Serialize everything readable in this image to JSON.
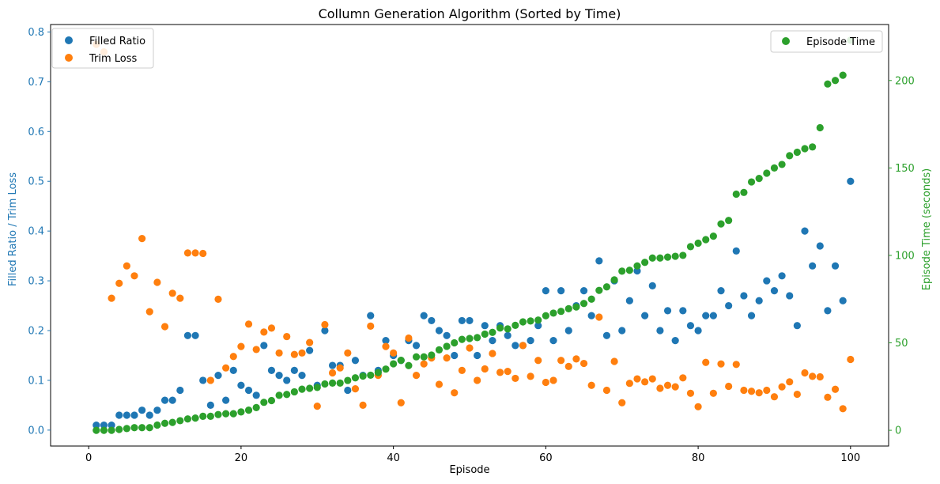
{
  "chart_data": {
    "type": "scatter",
    "title": "Collumn Generation Algorithm (Sorted by Time)",
    "xlabel": "Episode",
    "ylabel_left": "Filled Ratio / Trim Loss",
    "ylabel_right": "Episode Time (seconds)",
    "xlim": [
      -5,
      105
    ],
    "ylim_left": [
      -0.032,
      0.815
    ],
    "ylim_right": [
      -9,
      232
    ],
    "x_ticks": [
      0,
      20,
      40,
      60,
      80,
      100
    ],
    "y_left_ticks": [
      "0.0",
      "0.1",
      "0.2",
      "0.3",
      "0.4",
      "0.5",
      "0.6",
      "0.7",
      "0.8"
    ],
    "y_right_ticks": [
      0,
      50,
      100,
      150,
      200
    ],
    "colors": {
      "filled": "#1f77b4",
      "trim": "#ff7f0e",
      "time": "#2ca02c",
      "axis": "#000000"
    },
    "legend_left": [
      "Filled Ratio",
      "Trim Loss"
    ],
    "legend_right": [
      "Episode Time"
    ],
    "series": [
      {
        "name": "Filled Ratio",
        "axis": "left",
        "values": [
          0.01,
          0.01,
          0.01,
          0.03,
          0.03,
          0.03,
          0.04,
          0.03,
          0.04,
          0.06,
          0.06,
          0.08,
          0.19,
          0.19,
          0.1,
          0.05,
          0.11,
          0.06,
          0.12,
          0.09,
          0.08,
          0.07,
          0.17,
          0.12,
          0.11,
          0.1,
          0.12,
          0.11,
          0.16,
          0.09,
          0.2,
          0.13,
          0.13,
          0.08,
          0.14,
          0.11,
          0.23,
          0.12,
          0.18,
          0.15,
          0.14,
          0.18,
          0.17,
          0.23,
          0.22,
          0.2,
          0.19,
          0.15,
          0.22,
          0.22,
          0.15,
          0.21,
          0.18,
          0.21,
          0.19,
          0.17,
          0.17,
          0.18,
          0.21,
          0.28,
          0.18,
          0.28,
          0.2,
          0.25,
          0.28,
          0.23,
          0.34,
          0.19,
          0.3,
          0.2,
          0.26,
          0.32,
          0.23,
          0.29,
          0.2,
          0.24,
          0.18,
          0.24,
          0.21,
          0.2,
          0.23,
          0.23,
          0.28,
          0.25,
          0.36,
          0.27,
          0.23,
          0.26,
          0.3,
          0.28,
          0.31,
          0.27,
          0.21,
          0.4,
          0.33,
          0.37,
          0.24,
          0.33,
          0.26,
          0.5
        ]
      },
      {
        "name": "Trim Loss",
        "axis": "left",
        "values": [
          0.775,
          0.76,
          0.265,
          0.295,
          0.33,
          0.31,
          0.385,
          0.238,
          0.297,
          0.208,
          0.275,
          0.265,
          0.356,
          0.356,
          0.355,
          0.1,
          0.263,
          0.125,
          0.148,
          0.168,
          0.213,
          0.162,
          0.197,
          0.205,
          0.155,
          0.188,
          0.152,
          0.155,
          0.176,
          0.048,
          0.212,
          0.115,
          0.125,
          0.155,
          0.083,
          0.05,
          0.209,
          0.11,
          0.168,
          0.155,
          0.055,
          0.185,
          0.11,
          0.133,
          0.145,
          0.092,
          0.145,
          0.075,
          0.12,
          0.165,
          0.1,
          0.123,
          0.154,
          0.116,
          0.118,
          0.104,
          0.17,
          0.108,
          0.14,
          0.096,
          0.1,
          0.14,
          0.128,
          0.143,
          0.134,
          0.09,
          0.227,
          0.08,
          0.138,
          0.055,
          0.094,
          0.103,
          0.097,
          0.103,
          0.084,
          0.09,
          0.087,
          0.105,
          0.074,
          0.047,
          0.136,
          0.074,
          0.133,
          0.088,
          0.132,
          0.08,
          0.078,
          0.075,
          0.08,
          0.067,
          0.087,
          0.097,
          0.072,
          0.115,
          0.108,
          0.107,
          0.066,
          0.082,
          0.043,
          0.142
        ]
      },
      {
        "name": "Episode Time",
        "axis": "right",
        "values": [
          0,
          0,
          0,
          0.5,
          1,
          1.5,
          1.5,
          1.5,
          3,
          4,
          4.5,
          5.5,
          6.5,
          7,
          8,
          8,
          9,
          9.5,
          9.5,
          10.5,
          11.5,
          13,
          16,
          17,
          20,
          20.5,
          22,
          23.5,
          24,
          24.5,
          26.5,
          27,
          27,
          28.5,
          30,
          31,
          31.5,
          33,
          35,
          38,
          40,
          37,
          42,
          42,
          43,
          46,
          48,
          50,
          52,
          52.5,
          53,
          55,
          56,
          58.5,
          58,
          60,
          62,
          62.5,
          63,
          65.5,
          67,
          68,
          69.5,
          70.5,
          72.5,
          75,
          80,
          82,
          86,
          91,
          91.5,
          94,
          96,
          98.5,
          98.5,
          99,
          99.5,
          100,
          105,
          107,
          109,
          111,
          118,
          120,
          135,
          136,
          142,
          144,
          147,
          150,
          152,
          157,
          159,
          161,
          162,
          173,
          198,
          200,
          203,
          223
        ]
      }
    ]
  }
}
